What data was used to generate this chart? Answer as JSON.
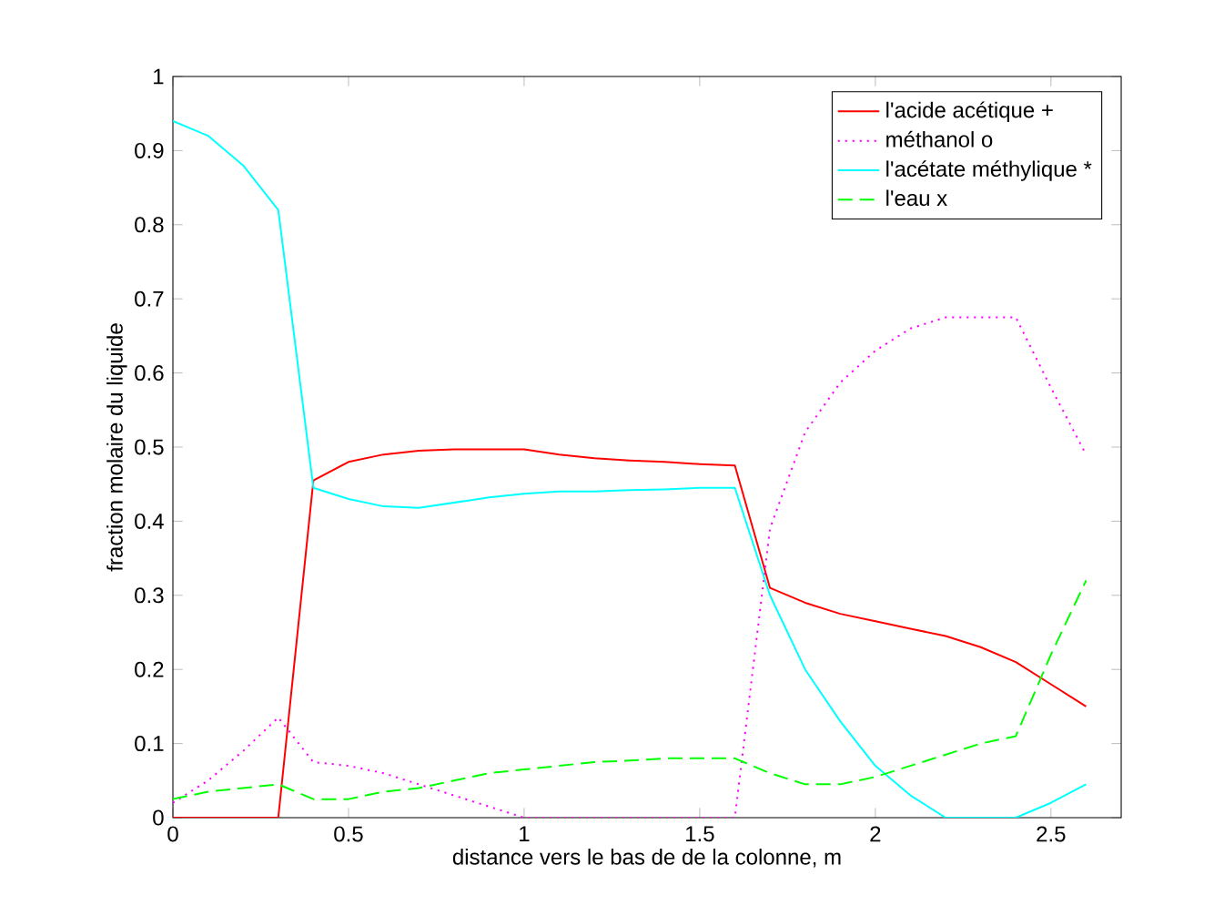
{
  "chart_data": {
    "type": "line",
    "xlabel": "distance vers le bas de de la colonne, m",
    "ylabel": "fraction molaire du liquide",
    "x": [
      0,
      0.1,
      0.2,
      0.3,
      0.4,
      0.5,
      0.6,
      0.7,
      0.8,
      0.9,
      1.0,
      1.1,
      1.2,
      1.3,
      1.4,
      1.5,
      1.6,
      1.7,
      1.8,
      1.9,
      2.0,
      2.1,
      2.2,
      2.3,
      2.4,
      2.5,
      2.6
    ],
    "series": [
      {
        "name": "l'acide acétique +",
        "color": "#ff0000",
        "line_style": "solid",
        "values": [
          0,
          0,
          0,
          0,
          0.455,
          0.48,
          0.49,
          0.495,
          0.497,
          0.497,
          0.497,
          0.49,
          0.485,
          0.482,
          0.48,
          0.477,
          0.475,
          0.31,
          0.29,
          0.275,
          0.265,
          0.255,
          0.245,
          0.23,
          0.21,
          0.18,
          0.15
        ]
      },
      {
        "name": "méthanol o",
        "color": "#ff00ff",
        "line_style": "dotted",
        "values": [
          0.02,
          0.05,
          0.09,
          0.135,
          0.075,
          0.07,
          0.06,
          0.045,
          0.03,
          0.015,
          0,
          0,
          0,
          0,
          0,
          0,
          0,
          0.39,
          0.52,
          0.587,
          0.63,
          0.66,
          0.675,
          0.675,
          0.675,
          0.58,
          0.49
        ]
      },
      {
        "name": "l'acétate méthylique  *",
        "color": "#00ffff",
        "line_style": "solid",
        "values": [
          0.94,
          0.92,
          0.88,
          0.82,
          0.445,
          0.43,
          0.42,
          0.418,
          0.425,
          0.432,
          0.437,
          0.44,
          0.44,
          0.442,
          0.443,
          0.445,
          0.445,
          0.3,
          0.2,
          0.13,
          0.07,
          0.03,
          0,
          0,
          0,
          0.02,
          0.045
        ]
      },
      {
        "name": "l'eau x",
        "color": "#00ff00",
        "line_style": "dashed",
        "values": [
          0.025,
          0.035,
          0.04,
          0.045,
          0.025,
          0.025,
          0.035,
          0.04,
          0.05,
          0.06,
          0.065,
          0.07,
          0.075,
          0.077,
          0.08,
          0.08,
          0.08,
          0.06,
          0.045,
          0.045,
          0.055,
          0.07,
          0.085,
          0.1,
          0.11,
          0.22,
          0.32
        ]
      }
    ],
    "xlim": [
      0,
      2.7
    ],
    "ylim": [
      0,
      1
    ],
    "xticks": [
      0,
      0.5,
      1,
      1.5,
      2,
      2.5
    ],
    "yticks": [
      0,
      0.1,
      0.2,
      0.3,
      0.4,
      0.5,
      0.6,
      0.7,
      0.8,
      0.9,
      1
    ],
    "grid": false,
    "legend": "top right",
    "marker": "none"
  }
}
